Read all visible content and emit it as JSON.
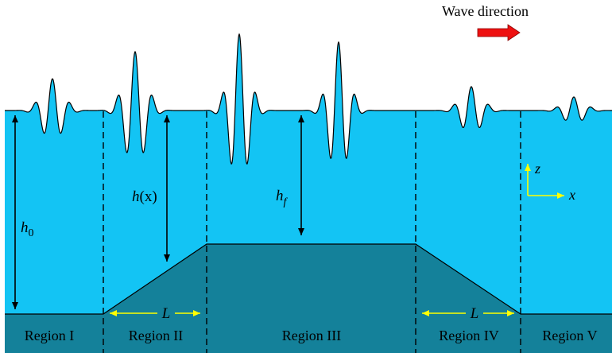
{
  "colors": {
    "water": "#13c4f4",
    "bed": "#14819a",
    "arrow": "#ee1111",
    "axis": "#ffff00",
    "dimension": "#ffff00",
    "line": "#000000"
  },
  "wave_direction": {
    "label": "Wave direction"
  },
  "regions": {
    "r1": "Region I",
    "r2": "Region II",
    "r3": "Region III",
    "r4": "Region IV",
    "r5": "Region V"
  },
  "depths": {
    "h0": {
      "base": "h",
      "sub": "0"
    },
    "hx": {
      "base": "h",
      "arg": "(x)"
    },
    "hf": {
      "base": "h",
      "sub": "f"
    }
  },
  "slope_length": {
    "label": "L"
  },
  "axes": {
    "z": "z",
    "x": "x"
  }
}
